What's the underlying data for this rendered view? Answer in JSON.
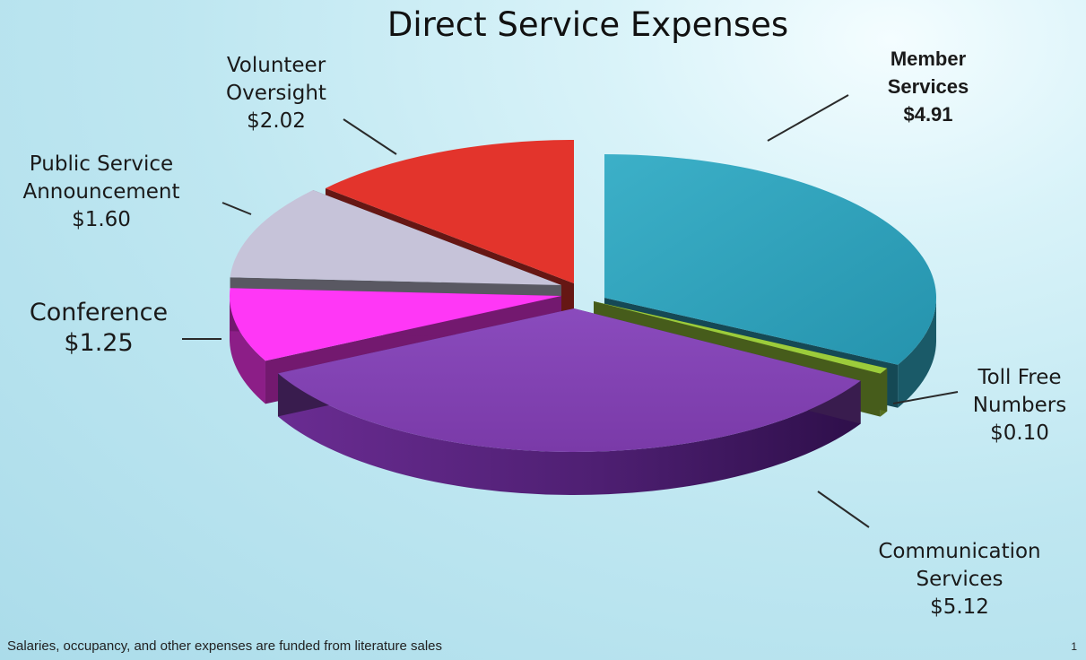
{
  "chart_data": {
    "type": "pie",
    "title": "Direct Service Expenses",
    "slices": [
      {
        "label": "Member Services",
        "value_label": "$4.91",
        "value": 4.91,
        "color": "#2fa3bd"
      },
      {
        "label": "Toll Free Numbers",
        "value_label": "$0.10",
        "value": 0.1,
        "color": "#9ccc3b"
      },
      {
        "label": "Communication Services",
        "value_label": "$5.12",
        "value": 5.12,
        "color": "#7f3fae"
      },
      {
        "label": "Conference",
        "value_label": "$1.25",
        "value": 1.25,
        "color": "#ff37f6"
      },
      {
        "label": "Public Service Announcement",
        "value_label": "$1.60",
        "value": 1.6,
        "color": "#c6c3d9"
      },
      {
        "label": "Volunteer Oversight",
        "value_label": "$2.02",
        "value": 2.02,
        "color": "#e3342c"
      }
    ],
    "footnote": "Salaries, occupancy, and other expenses are funded from literature sales",
    "page_number": "1"
  }
}
